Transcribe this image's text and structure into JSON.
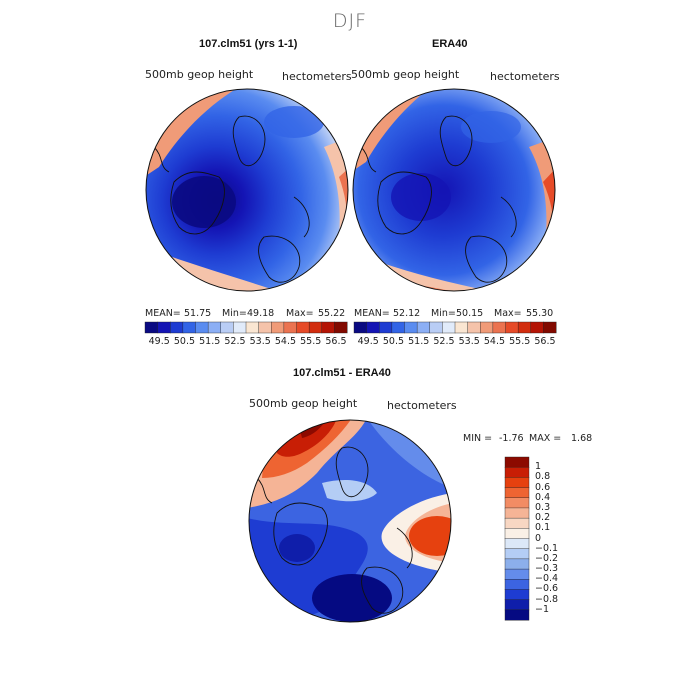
{
  "figure": {
    "season": "DJF"
  },
  "panels": [
    {
      "title": "107.clm51 (yrs 1-1)",
      "field_label": "500mb geop height",
      "units_label": "hectometers",
      "stats": {
        "mean_label": "MEAN=",
        "mean": "51.75",
        "min_label": "Min=",
        "min": "49.18",
        "max_label": "Max=",
        "max": "55.22"
      }
    },
    {
      "title": "ERA40",
      "field_label": "500mb geop height",
      "units_label": "hectometers",
      "stats": {
        "mean_label": "MEAN=",
        "mean": "52.12",
        "min_label": "Min=",
        "min": "50.15",
        "max_label": "Max=",
        "max": "55.30"
      }
    }
  ],
  "abs_colorbar": {
    "labels": [
      "49.5",
      "50.5",
      "51.5",
      "52.5",
      "53.5",
      "54.5",
      "55.5",
      "56.5"
    ],
    "colors": [
      "#0a0a82",
      "#1414b4",
      "#1e3cd2",
      "#3264e6",
      "#5a8cf0",
      "#8caff5",
      "#b9cdf5",
      "#e1ebfa",
      "#fae6d2",
      "#f5c3aa",
      "#f09b78",
      "#eb7350",
      "#e64b28",
      "#d22d0f",
      "#b41405",
      "#820a00"
    ]
  },
  "diff_panel": {
    "title": "107.clm51 - ERA40",
    "field_label": "500mb geop height",
    "units_label": "hectometers",
    "stats": {
      "min_label": "MIN =",
      "min": "-1.76",
      "max_label": "MAX =",
      "max": "1.68"
    }
  },
  "diff_colorbar": {
    "labels": [
      "1",
      "0.8",
      "0.6",
      "0.4",
      "0.3",
      "0.2",
      "0.1",
      "0",
      "−0.1",
      "−0.2",
      "−0.3",
      "−0.4",
      "−0.6",
      "−0.8",
      "−1"
    ],
    "colors": [
      "#8c0a00",
      "#c81e05",
      "#e6410f",
      "#ee6432",
      "#f28c64",
      "#f5b496",
      "#f8d7c3",
      "#faf0e6",
      "#dce8f8",
      "#b4cdf5",
      "#8cafeb",
      "#648ceb",
      "#3c64e1",
      "#1e3cd2",
      "#0f1eaa",
      "#050a82"
    ]
  }
}
